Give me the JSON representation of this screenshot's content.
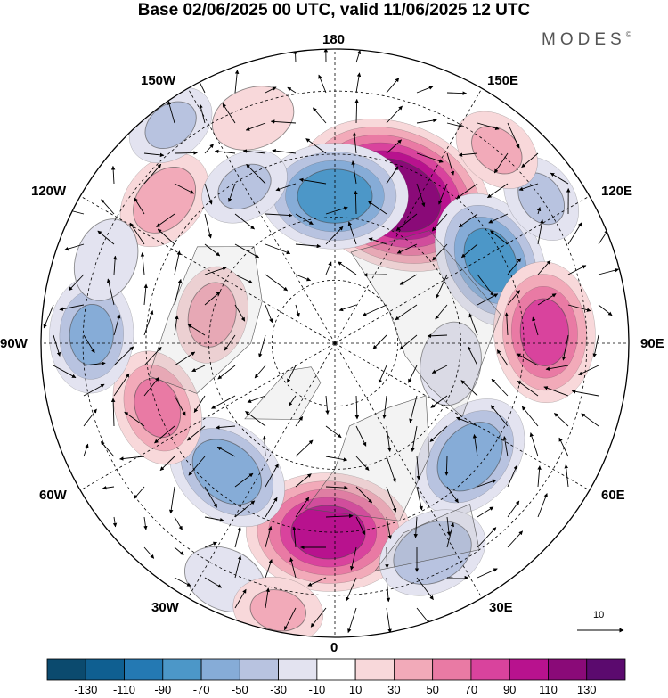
{
  "title": "Base 02/06/2025 00 UTC, valid 11/06/2025 12 UTC",
  "brand": "MODES",
  "brand_mark": "©",
  "longitude_labels": {
    "top": "180",
    "bottom": "0",
    "left": "90W",
    "right": "90E",
    "top_left": "150W",
    "top_right": "150E",
    "upper_left": "120W",
    "upper_right": "120E",
    "lower_left": "60W",
    "lower_right": "60E",
    "bottom_left": "30W",
    "bottom_right": "30E"
  },
  "reference_vector": "10",
  "colorbar": {
    "labels": [
      "-130",
      "-110",
      "-90",
      "-70",
      "-50",
      "-30",
      "-10",
      "10",
      "30",
      "50",
      "70",
      "90",
      "110",
      "130"
    ],
    "colors": [
      "#0b4a6e",
      "#0f5f91",
      "#2479b3",
      "#4c97c8",
      "#86acd7",
      "#b8c3e0",
      "#e3e3f0",
      "#ffffff",
      "#f8d8da",
      "#f2aab9",
      "#e97aa4",
      "#d9439d",
      "#b8128e",
      "#8a0a78",
      "#5b0a6e"
    ]
  },
  "anomalies": [
    {
      "name": "pos-150E",
      "lon": 158,
      "lat": 52,
      "value": 120
    },
    {
      "name": "neg-180",
      "lon": 180,
      "lat": 55,
      "value": -75
    },
    {
      "name": "neg-120E",
      "lon": 118,
      "lat": 48,
      "value": -70
    },
    {
      "name": "pos-90E",
      "lon": 93,
      "lat": 40,
      "value": 70
    },
    {
      "name": "neg-60E",
      "lon": 50,
      "lat": 48,
      "value": -60
    },
    {
      "name": "pos-0",
      "lon": -2,
      "lat": 45,
      "value": 90
    },
    {
      "name": "neg-45W",
      "lon": -40,
      "lat": 50,
      "value": -60
    },
    {
      "name": "pos-70W",
      "lon": -70,
      "lat": 45,
      "value": 50
    },
    {
      "name": "neg-90W",
      "lon": -92,
      "lat": 32,
      "value": -50
    },
    {
      "name": "pos-100W",
      "lon": -103,
      "lat": 60,
      "value": 35
    },
    {
      "name": "pos-130W",
      "lon": -130,
      "lat": 37,
      "value": 40
    },
    {
      "name": "neg-155W",
      "lon": -150,
      "lat": 47,
      "value": -30
    },
    {
      "name": "pos-165W",
      "lon": -160,
      "lat": 33,
      "value": 25
    },
    {
      "name": "neg-110W",
      "lon": -110,
      "lat": 32,
      "value": -25
    },
    {
      "name": "neg-140W",
      "lon": -143,
      "lat": 25,
      "value": -30
    },
    {
      "name": "neg-130E",
      "lon": 125,
      "lat": 30,
      "value": -30
    },
    {
      "name": "pos-140E",
      "lon": 140,
      "lat": 30,
      "value": 30
    },
    {
      "name": "neg-30E",
      "lon": 25,
      "lat": 35,
      "value": -45
    },
    {
      "name": "neg-20W",
      "lon": -25,
      "lat": 28,
      "value": -25
    },
    {
      "name": "pos-20W",
      "lon": -12,
      "lat": 25,
      "value": 30
    },
    {
      "name": "neg-80E",
      "lon": 80,
      "lat": 62,
      "value": -25
    }
  ]
}
